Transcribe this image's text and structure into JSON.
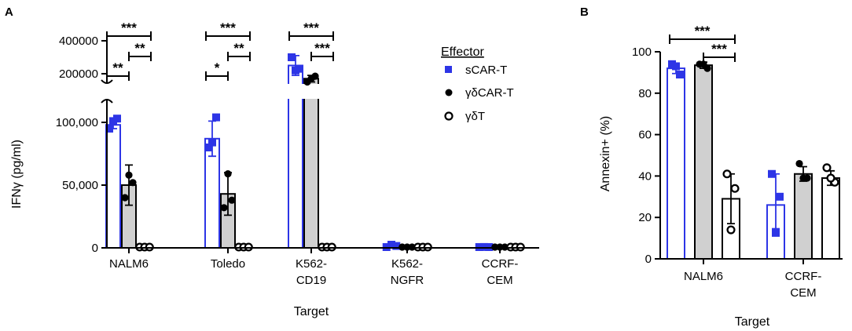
{
  "colors": {
    "scar": "#2d35e6",
    "gdcar_fill": "#d0d0d0",
    "black": "#000000",
    "white": "#ffffff"
  },
  "legend": {
    "title": "Effector",
    "items": [
      {
        "label": "sCAR-T",
        "marker": "square",
        "color": "#2d35e6"
      },
      {
        "label": "γδCAR-T",
        "marker": "filled-circle",
        "color": "#000000"
      },
      {
        "label": "γδT",
        "marker": "open-circle",
        "color": "#000000"
      }
    ]
  },
  "chart_data": [
    {
      "panel": "A",
      "type": "bar",
      "xlabel": "Target",
      "ylabel": "IFNγ (pg/ml)",
      "categories": [
        "NALM6",
        "Toledo",
        "K562-\nCD19",
        "K562-\nNGFR",
        "CCRF-\nCEM"
      ],
      "axis_break": true,
      "ylim_lower": [
        0,
        120000
      ],
      "ylim_upper": [
        100000,
        400000
      ],
      "yticks_lower": [
        "0",
        "50,000",
        "100,000"
      ],
      "yticks_upper": [
        "200000",
        "400000"
      ],
      "series": [
        {
          "name": "sCAR-T",
          "values": [
            98000,
            87000,
            250000,
            1500,
            500
          ],
          "errors": [
            3000,
            14000,
            60000,
            1500,
            500
          ],
          "points": [
            [
              95000,
              101000,
              103000
            ],
            [
              80000,
              84000,
              104000
            ],
            [
              300000,
              220000,
              230000
            ],
            [
              500,
              2500,
              1500
            ],
            [
              300,
              700,
              500
            ]
          ]
        },
        {
          "name": "γδCAR-T",
          "values": [
            50000,
            43000,
            170000,
            0,
            0
          ],
          "errors": [
            16000,
            17000,
            20000,
            0,
            0
          ],
          "points": [
            [
              40000,
              58000,
              52000
            ],
            [
              32000,
              59000,
              38000
            ],
            [
              150000,
              170000,
              185000
            ],
            [
              0,
              0,
              0
            ],
            [
              0,
              0,
              0
            ]
          ]
        },
        {
          "name": "γδT",
          "values": [
            0,
            0,
            0,
            0,
            0
          ],
          "errors": [
            0,
            0,
            0,
            0,
            0
          ],
          "points": [
            [
              0,
              0,
              0
            ],
            [
              0,
              0,
              0
            ],
            [
              0,
              0,
              0
            ],
            [
              0,
              0,
              0
            ],
            [
              0,
              0,
              0
            ]
          ]
        }
      ],
      "significance": [
        {
          "group": 0,
          "from": 0,
          "to": 2,
          "label": "***"
        },
        {
          "group": 0,
          "from": 1,
          "to": 2,
          "label": "**"
        },
        {
          "group": 0,
          "from": 0,
          "to": 1,
          "label": "**"
        },
        {
          "group": 1,
          "from": 0,
          "to": 2,
          "label": "***"
        },
        {
          "group": 1,
          "from": 1,
          "to": 2,
          "label": "**"
        },
        {
          "group": 1,
          "from": 0,
          "to": 1,
          "label": "*"
        },
        {
          "group": 2,
          "from": 0,
          "to": 2,
          "label": "***"
        },
        {
          "group": 2,
          "from": 1,
          "to": 2,
          "label": "***"
        }
      ]
    },
    {
      "panel": "B",
      "type": "bar",
      "xlabel": "Target",
      "ylabel": "Annexin+ (%)",
      "categories": [
        "NALM6",
        "CCRF-\nCEM"
      ],
      "ylim": [
        0,
        100
      ],
      "yticks": [
        "0",
        "20",
        "40",
        "60",
        "80",
        "100"
      ],
      "series": [
        {
          "name": "sCAR-T",
          "values": [
            92,
            26
          ],
          "errors": [
            2.5,
            15
          ],
          "points": [
            [
              94,
              89,
              93
            ],
            [
              41,
              30,
              13
            ]
          ]
        },
        {
          "name": "γδCAR-T",
          "values": [
            93.5,
            41
          ],
          "errors": [
            1.5,
            3.5
          ],
          "points": [
            [
              94,
              92,
              94
            ],
            [
              46,
              39,
              39
            ]
          ]
        },
        {
          "name": "γδT",
          "values": [
            29,
            39
          ],
          "errors": [
            12,
            3.5
          ],
          "points": [
            [
              41,
              34,
              14
            ],
            [
              44,
              37,
              39
            ]
          ]
        }
      ],
      "significance": [
        {
          "group": 0,
          "from": 0,
          "to": 2,
          "label": "***"
        },
        {
          "group": 0,
          "from": 1,
          "to": 2,
          "label": "***"
        }
      ]
    }
  ]
}
